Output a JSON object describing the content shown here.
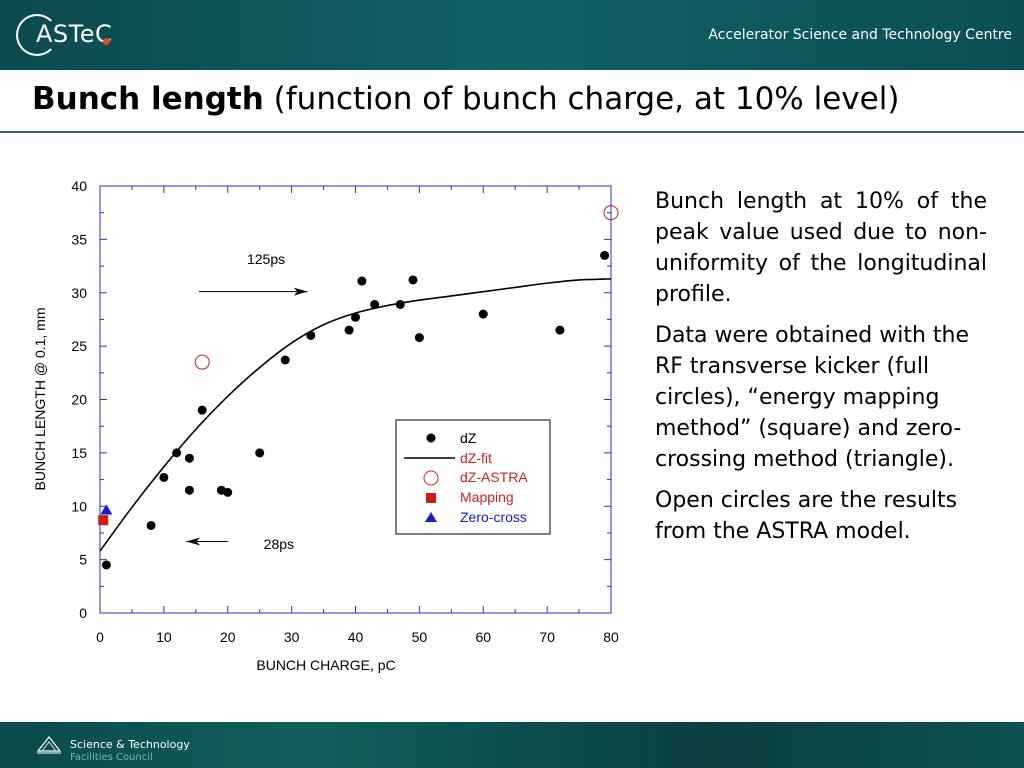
{
  "header": {
    "logo_text": "ASTeC",
    "org_name": "Accelerator Science and Technology Centre"
  },
  "slide": {
    "title_bold": "Bunch length",
    "title_rest": "(function of bunch charge, at 10% level)"
  },
  "description": [
    "Bunch length at 10% of the peak value used due to non-uniformity of the longitudinal profile.",
    "Data were obtained with the RF transverse kicker (full circles), “energy mapping method” (square) and zero-crossing method (triangle).",
    "Open circles are the results from the ASTRA model."
  ],
  "footer": {
    "line1": "Science & Technology",
    "line2": "Facilities Council"
  },
  "chart_data": {
    "type": "scatter",
    "xlabel": "BUNCH CHARGE, pC",
    "ylabel": "BUNCH LENGTH @ 0.1, mm",
    "xlim": [
      0,
      80
    ],
    "ylim": [
      0,
      40
    ],
    "xticks": [
      0,
      10,
      20,
      30,
      40,
      50,
      60,
      70,
      80
    ],
    "yticks": [
      0,
      5,
      10,
      15,
      20,
      25,
      30,
      35,
      40
    ],
    "grid": false,
    "legend_position": "center-right",
    "series": [
      {
        "name": "dZ",
        "marker": "filled-circle",
        "color": "#000000",
        "points": [
          [
            1,
            4.5
          ],
          [
            8,
            8.2
          ],
          [
            10,
            12.7
          ],
          [
            12,
            15
          ],
          [
            14,
            14.5
          ],
          [
            14,
            11.5
          ],
          [
            16,
            19
          ],
          [
            19,
            11.5
          ],
          [
            20,
            11.3
          ],
          [
            25,
            15
          ],
          [
            29,
            23.7
          ],
          [
            33,
            26
          ],
          [
            39,
            26.5
          ],
          [
            40,
            27.7
          ],
          [
            41,
            31.1
          ],
          [
            43,
            28.9
          ],
          [
            47,
            28.9
          ],
          [
            49,
            31.2
          ],
          [
            50,
            25.8
          ],
          [
            60,
            28
          ],
          [
            72,
            26.5
          ],
          [
            79,
            33.5
          ]
        ]
      },
      {
        "name": "dZ-fit",
        "marker": "line",
        "color": "#000000",
        "points": [
          [
            0,
            5.8
          ],
          [
            5,
            9.9
          ],
          [
            10,
            13.7
          ],
          [
            15,
            17.2
          ],
          [
            20,
            20.3
          ],
          [
            25,
            23.0
          ],
          [
            30,
            25.3
          ],
          [
            35,
            27.0
          ],
          [
            40,
            28.1
          ],
          [
            45,
            28.8
          ],
          [
            50,
            29.3
          ],
          [
            55,
            29.7
          ],
          [
            60,
            30.1
          ],
          [
            65,
            30.5
          ],
          [
            70,
            30.9
          ],
          [
            75,
            31.2
          ],
          [
            80,
            31.3
          ]
        ]
      },
      {
        "name": "dZ-ASTRA",
        "marker": "open-circle",
        "color": "#cc2222",
        "points": [
          [
            16,
            23.5
          ],
          [
            80,
            37.5
          ]
        ]
      },
      {
        "name": "Mapping",
        "marker": "square",
        "color": "#d21919",
        "points": [
          [
            0.5,
            8.7
          ]
        ]
      },
      {
        "name": "Zero-cross",
        "marker": "triangle",
        "color": "#1020c8",
        "points": [
          [
            1,
            9.6
          ]
        ]
      }
    ],
    "annotations": [
      {
        "text": "125ps",
        "x": 26,
        "y": 32.7,
        "arrow_from": [
          15.5,
          30.1
        ],
        "arrow_to": [
          32.5,
          30.1
        ]
      },
      {
        "text": "28ps",
        "x": 28,
        "y": 6,
        "arrow_from": [
          20,
          6.7
        ],
        "arrow_to": [
          13.5,
          6.7
        ]
      }
    ]
  }
}
